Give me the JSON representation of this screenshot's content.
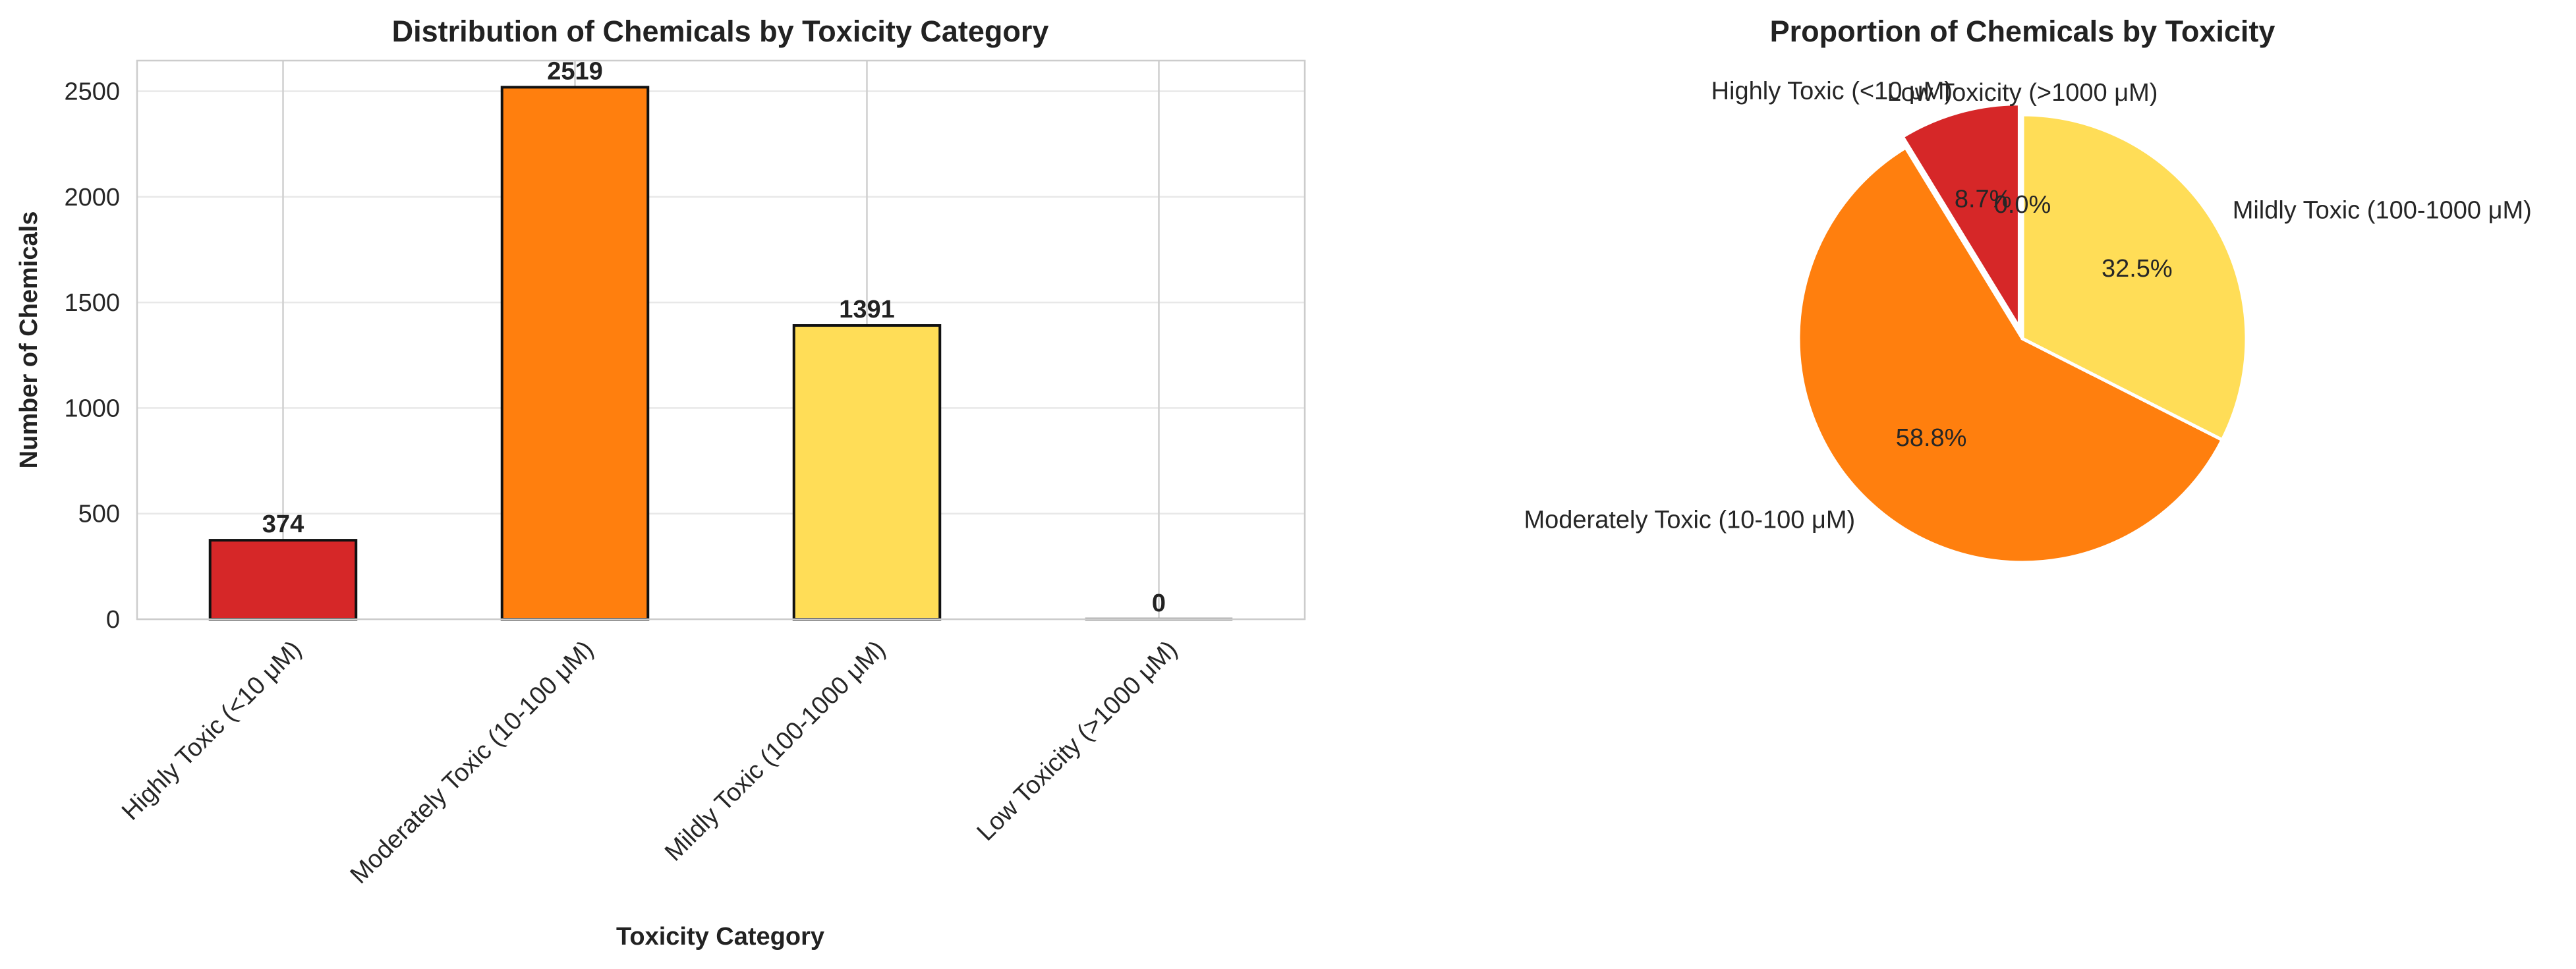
{
  "chart_data": [
    {
      "type": "bar",
      "title": "Distribution of Chemicals by Toxicity Category",
      "xlabel": "Toxicity Category",
      "ylabel": "Number of Chemicals",
      "categories": [
        "Highly Toxic (<10 μM)",
        "Moderately Toxic (10-100 μM)",
        "Mildly Toxic (100-1000 μM)",
        "Low Toxicity (>1000 μM)"
      ],
      "values": [
        374,
        2519,
        1391,
        0
      ],
      "value_labels": [
        "374",
        "2519",
        "1391",
        "0"
      ],
      "colors": [
        "#d62728",
        "#ff7f0e",
        "#ffdd57",
        "#aaaaaa"
      ],
      "ylim": [
        0,
        2645
      ],
      "yticks": [
        0,
        500,
        1000,
        1500,
        2000,
        2500
      ],
      "grid": true
    },
    {
      "type": "pie",
      "title": "Proportion of Chemicals by Toxicity",
      "labels": [
        "Highly Toxic (<10 μM)",
        "Moderately Toxic (10-100 μM)",
        "Mildly Toxic (100-1000 μM)",
        "Low Toxicity (>1000 μM)"
      ],
      "values": [
        374,
        2519,
        1391,
        0
      ],
      "percent_labels": [
        "8.7%",
        "58.8%",
        "32.5%",
        "0.0%"
      ],
      "colors": [
        "#d62728",
        "#ff7f0e",
        "#ffdd57",
        "#aaaaaa"
      ],
      "explode": [
        0.05,
        0,
        0,
        0
      ],
      "startangle": 90,
      "counterclock": true
    }
  ]
}
